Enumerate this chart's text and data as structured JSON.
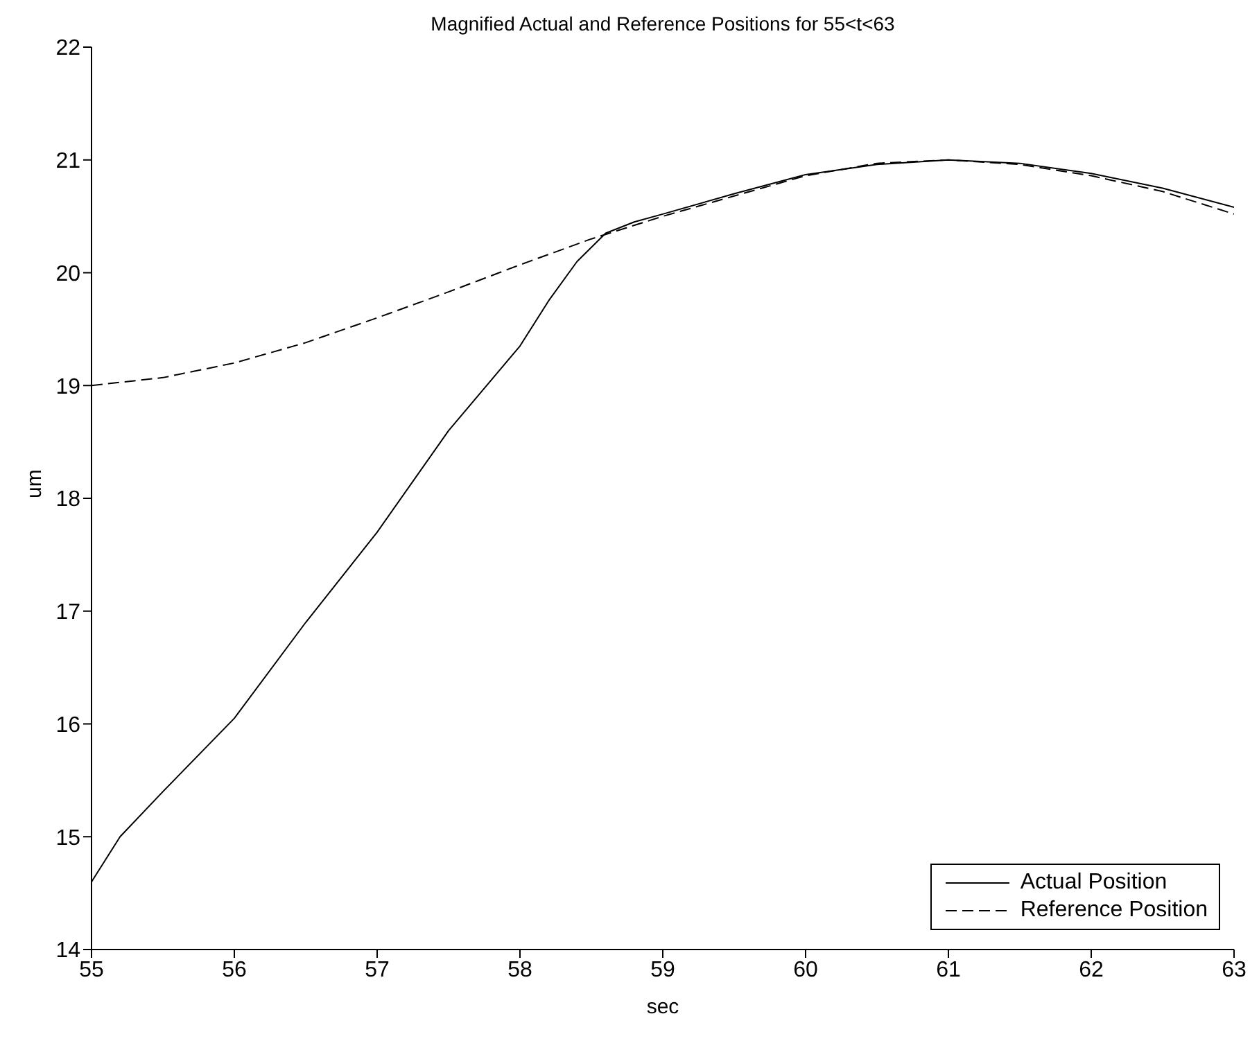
{
  "chart_data": {
    "type": "line",
    "title": "Magnified Actual and Reference Positions for 55<t<63",
    "xlabel": "sec",
    "ylabel": "um",
    "xlim": [
      55,
      63
    ],
    "xticks": [
      55,
      56,
      57,
      58,
      59,
      60,
      61,
      62,
      63
    ],
    "ylim": [
      14,
      22
    ],
    "yticks": [
      14,
      15,
      16,
      17,
      18,
      19,
      20,
      21,
      22
    ],
    "grid": false,
    "legend": "bottom right",
    "series": [
      {
        "name": "Actual Position",
        "color": "#000000",
        "line_style": "solid",
        "x": [
          55,
          55.2,
          55.5,
          56,
          56.5,
          57,
          57.5,
          58,
          58.2,
          58.4,
          58.6,
          58.8,
          59,
          59.5,
          60,
          60.5,
          61,
          61.5,
          62,
          62.5,
          63
        ],
        "values": [
          14.6,
          15.0,
          15.4,
          16.05,
          16.9,
          17.7,
          18.6,
          19.35,
          19.75,
          20.1,
          20.35,
          20.45,
          20.52,
          20.7,
          20.87,
          20.96,
          21.0,
          20.97,
          20.88,
          20.75,
          20.58
        ]
      },
      {
        "name": "Reference Position",
        "color": "#000000",
        "line_style": "dashed",
        "x": [
          55,
          55.5,
          56,
          56.5,
          57,
          57.5,
          58,
          58.5,
          59,
          59.5,
          60,
          60.5,
          61,
          61.5,
          62,
          62.5,
          63
        ],
        "values": [
          19.0,
          19.07,
          19.2,
          19.38,
          19.6,
          19.83,
          20.07,
          20.3,
          20.5,
          20.68,
          20.86,
          20.97,
          21.0,
          20.96,
          20.86,
          20.72,
          20.52
        ]
      }
    ]
  }
}
